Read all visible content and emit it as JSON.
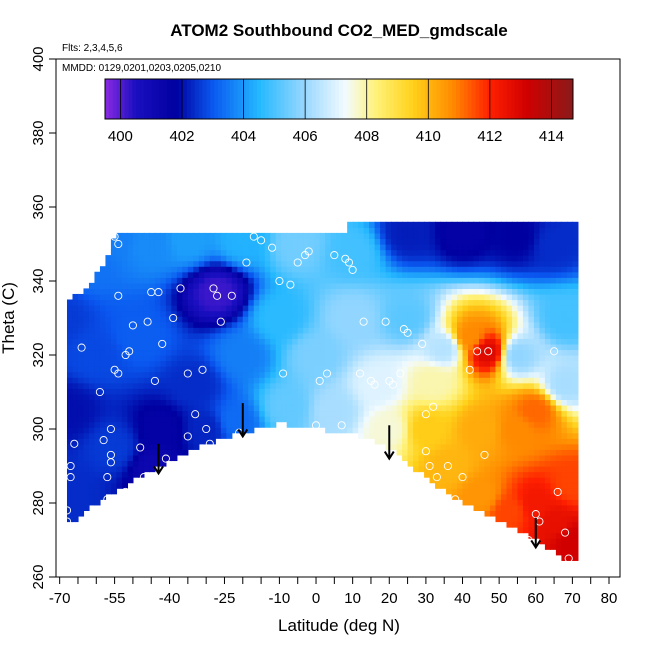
{
  "chart_data": {
    "type": "heatmap",
    "title": "ATOM2 Southbound CO2_MED_gmdscale",
    "subtitle_lines": [
      "Flts: 2,3,4,5,6",
      "MMDD: 0129,0201,0203,0205,0210"
    ],
    "xlabel": "Latitude (deg N)",
    "ylabel": "Theta (C)",
    "xlim": [
      -71,
      83
    ],
    "ylim": [
      260,
      400
    ],
    "x_ticks": [
      -70,
      -65,
      -60,
      -55,
      -50,
      -45,
      -40,
      -35,
      -30,
      -25,
      -20,
      -15,
      -10,
      -5,
      0,
      5,
      10,
      15,
      20,
      25,
      30,
      35,
      40,
      45,
      50,
      55,
      60,
      65,
      70,
      75,
      80
    ],
    "x_tick_labels": [
      "-70",
      "-55",
      "-40",
      "-25",
      "-10",
      "0",
      "10",
      "20",
      "30",
      "40",
      "50",
      "60",
      "70",
      "80"
    ],
    "y_ticks": [
      260,
      280,
      300,
      320,
      340,
      360,
      380,
      400
    ],
    "y_tick_labels": [
      "260",
      "280",
      "300",
      "320",
      "340",
      "360",
      "380",
      "400"
    ],
    "colorbar": {
      "min": 399.5,
      "max": 414.7,
      "tick_values": [
        400,
        402,
        404,
        406,
        408,
        410,
        412,
        414
      ],
      "tick_labels": [
        "400",
        "402",
        "404",
        "406",
        "408",
        "410",
        "412",
        "414"
      ],
      "color_stops": [
        {
          "value": 399.5,
          "color": "#8a2be2"
        },
        {
          "value": 400.5,
          "color": "#1a0fc0"
        },
        {
          "value": 401.8,
          "color": "#0000a0"
        },
        {
          "value": 403.0,
          "color": "#0a58f0"
        },
        {
          "value": 404.5,
          "color": "#24b8ff"
        },
        {
          "value": 406.0,
          "color": "#9ad8ff"
        },
        {
          "value": 407.3,
          "color": "#f2fbff"
        },
        {
          "value": 408.3,
          "color": "#fff27a"
        },
        {
          "value": 409.5,
          "color": "#ffd11a"
        },
        {
          "value": 410.8,
          "color": "#ff8a00"
        },
        {
          "value": 412.0,
          "color": "#ff2000"
        },
        {
          "value": 413.2,
          "color": "#d00000"
        },
        {
          "value": 414.7,
          "color": "#8a1a1a"
        }
      ]
    },
    "field_anchor_points": [
      {
        "x": -70,
        "y": 330,
        "v": 402.6
      },
      {
        "x": -62,
        "y": 345,
        "v": 403.4
      },
      {
        "x": -55,
        "y": 352,
        "v": 403.6
      },
      {
        "x": -45,
        "y": 350,
        "v": 403.8
      },
      {
        "x": -35,
        "y": 351,
        "v": 404.1
      },
      {
        "x": -20,
        "y": 351,
        "v": 404.4
      },
      {
        "x": -5,
        "y": 350,
        "v": 405.5
      },
      {
        "x": 10,
        "y": 348,
        "v": 404.9
      },
      {
        "x": 25,
        "y": 353,
        "v": 402.2
      },
      {
        "x": 40,
        "y": 353,
        "v": 401.6
      },
      {
        "x": 55,
        "y": 352,
        "v": 401.8
      },
      {
        "x": 65,
        "y": 350,
        "v": 402.4
      },
      {
        "x": -27,
        "y": 337,
        "v": 400.2
      },
      {
        "x": -68,
        "y": 305,
        "v": 402.0
      },
      {
        "x": -68,
        "y": 282,
        "v": 402.4
      },
      {
        "x": -60,
        "y": 320,
        "v": 402.8
      },
      {
        "x": -55,
        "y": 295,
        "v": 402.6
      },
      {
        "x": -48,
        "y": 325,
        "v": 403.1
      },
      {
        "x": -42,
        "y": 300,
        "v": 401.6
      },
      {
        "x": -44,
        "y": 290,
        "v": 401.2
      },
      {
        "x": -33,
        "y": 312,
        "v": 402.4
      },
      {
        "x": -30,
        "y": 300,
        "v": 402.3
      },
      {
        "x": -20,
        "y": 320,
        "v": 403.6
      },
      {
        "x": -22,
        "y": 302,
        "v": 403.3
      },
      {
        "x": -10,
        "y": 330,
        "v": 404.6
      },
      {
        "x": -8,
        "y": 306,
        "v": 405.3
      },
      {
        "x": 0,
        "y": 320,
        "v": 405.6
      },
      {
        "x": 5,
        "y": 305,
        "v": 406.2
      },
      {
        "x": 10,
        "y": 330,
        "v": 405.9
      },
      {
        "x": 17,
        "y": 312,
        "v": 407.0
      },
      {
        "x": 20,
        "y": 300,
        "v": 407.6
      },
      {
        "x": 25,
        "y": 330,
        "v": 405.2
      },
      {
        "x": 32,
        "y": 313,
        "v": 407.9
      },
      {
        "x": 35,
        "y": 322,
        "v": 406.4
      },
      {
        "x": 47,
        "y": 321,
        "v": 412.9
      },
      {
        "x": 42,
        "y": 325,
        "v": 410.8
      },
      {
        "x": 55,
        "y": 320,
        "v": 405.9
      },
      {
        "x": 68,
        "y": 330,
        "v": 404.9
      },
      {
        "x": 68,
        "y": 312,
        "v": 406.2
      },
      {
        "x": 30,
        "y": 300,
        "v": 409.6
      },
      {
        "x": 36,
        "y": 290,
        "v": 410.0
      },
      {
        "x": 45,
        "y": 300,
        "v": 410.2
      },
      {
        "x": 55,
        "y": 300,
        "v": 410.8
      },
      {
        "x": 60,
        "y": 305,
        "v": 411.2
      },
      {
        "x": 45,
        "y": 282,
        "v": 410.6
      },
      {
        "x": 53,
        "y": 278,
        "v": 411.6
      },
      {
        "x": 60,
        "y": 280,
        "v": 412.3
      },
      {
        "x": 65,
        "y": 275,
        "v": 412.6
      },
      {
        "x": 70,
        "y": 270,
        "v": 413.2
      },
      {
        "x": 70,
        "y": 285,
        "v": 411.6
      }
    ],
    "field_extent": {
      "lower_boundary": [
        [
          -68,
          274
        ],
        [
          -60,
          280
        ],
        [
          -50,
          286
        ],
        [
          -40,
          291
        ],
        [
          -30,
          296
        ],
        [
          -20,
          299
        ],
        [
          -10,
          301.5
        ],
        [
          -5,
          301
        ],
        [
          0,
          300
        ],
        [
          10,
          299
        ],
        [
          20,
          295
        ],
        [
          30,
          287
        ],
        [
          40,
          280
        ],
        [
          50,
          275.5
        ],
        [
          60,
          270
        ],
        [
          66,
          266
        ],
        [
          70,
          264
        ],
        [
          72,
          264
        ]
      ],
      "upper_boundary": [
        [
          -70,
          332
        ],
        [
          -62,
          338
        ],
        [
          -57,
          345
        ],
        [
          -55,
          352
        ],
        [
          -20,
          352.5
        ],
        [
          8,
          353
        ],
        [
          8,
          355
        ],
        [
          72,
          355
        ]
      ]
    },
    "sample_points": [
      [
        -70,
        331
      ],
      [
        -68,
        275
      ],
      [
        -68,
        278
      ],
      [
        -67,
        287
      ],
      [
        -67,
        290
      ],
      [
        -66,
        296
      ],
      [
        -64,
        322
      ],
      [
        -59,
        310
      ],
      [
        -58,
        297
      ],
      [
        -57,
        281
      ],
      [
        -57,
        287
      ],
      [
        -56,
        293
      ],
      [
        -56,
        291
      ],
      [
        -56,
        300
      ],
      [
        -55,
        316
      ],
      [
        -54,
        315
      ],
      [
        -54,
        336
      ],
      [
        -54,
        350
      ],
      [
        -55,
        352
      ],
      [
        -52,
        283
      ],
      [
        -52,
        320
      ],
      [
        -51,
        321
      ],
      [
        -50,
        328
      ],
      [
        -48,
        295
      ],
      [
        -47,
        287
      ],
      [
        -46,
        329
      ],
      [
        -45,
        337
      ],
      [
        -44,
        313
      ],
      [
        -43,
        337
      ],
      [
        -42,
        323
      ],
      [
        -41,
        292
      ],
      [
        -39,
        330
      ],
      [
        -37,
        338
      ],
      [
        -35,
        298
      ],
      [
        -35,
        315
      ],
      [
        -33,
        304
      ],
      [
        -31,
        316
      ],
      [
        -30,
        300
      ],
      [
        -29,
        296
      ],
      [
        -28,
        338
      ],
      [
        -27,
        336
      ],
      [
        -26,
        329
      ],
      [
        -24,
        291
      ],
      [
        -23,
        336
      ],
      [
        -21,
        299
      ],
      [
        -19,
        345
      ],
      [
        -17,
        352
      ],
      [
        -15,
        351
      ],
      [
        -12,
        349
      ],
      [
        -10,
        340
      ],
      [
        -9,
        315
      ],
      [
        -7,
        339
      ],
      [
        -5,
        345
      ],
      [
        -3,
        347
      ],
      [
        -2,
        348
      ],
      [
        0,
        301
      ],
      [
        1,
        313
      ],
      [
        3,
        315
      ],
      [
        5,
        347
      ],
      [
        7,
        301
      ],
      [
        8,
        346
      ],
      [
        9,
        345
      ],
      [
        10,
        343
      ],
      [
        12,
        315
      ],
      [
        13,
        329
      ],
      [
        15,
        313
      ],
      [
        16,
        312
      ],
      [
        19,
        329
      ],
      [
        20,
        313
      ],
      [
        21,
        312
      ],
      [
        23,
        315
      ],
      [
        24,
        327
      ],
      [
        25,
        326
      ],
      [
        29,
        323
      ],
      [
        30,
        304
      ],
      [
        30,
        294
      ],
      [
        31,
        290
      ],
      [
        32,
        306
      ],
      [
        33,
        287
      ],
      [
        36,
        290
      ],
      [
        38,
        281
      ],
      [
        40,
        287
      ],
      [
        42,
        316
      ],
      [
        44,
        321
      ],
      [
        46,
        293
      ],
      [
        47,
        321
      ],
      [
        48,
        272
      ],
      [
        52,
        270
      ],
      [
        54,
        268
      ],
      [
        56,
        267
      ],
      [
        58,
        270
      ],
      [
        60,
        277
      ],
      [
        61,
        275
      ],
      [
        65,
        321
      ],
      [
        66,
        283
      ],
      [
        68,
        272
      ],
      [
        69,
        265
      ]
    ],
    "arrows": [
      {
        "x": -43,
        "y_top": 296,
        "y_tip": 288
      },
      {
        "x": -20,
        "y_top": 307,
        "y_tip": 298
      },
      {
        "x": 20,
        "y_top": 301,
        "y_tip": 292
      },
      {
        "x": 60,
        "y_top": 276,
        "y_tip": 268
      }
    ]
  }
}
